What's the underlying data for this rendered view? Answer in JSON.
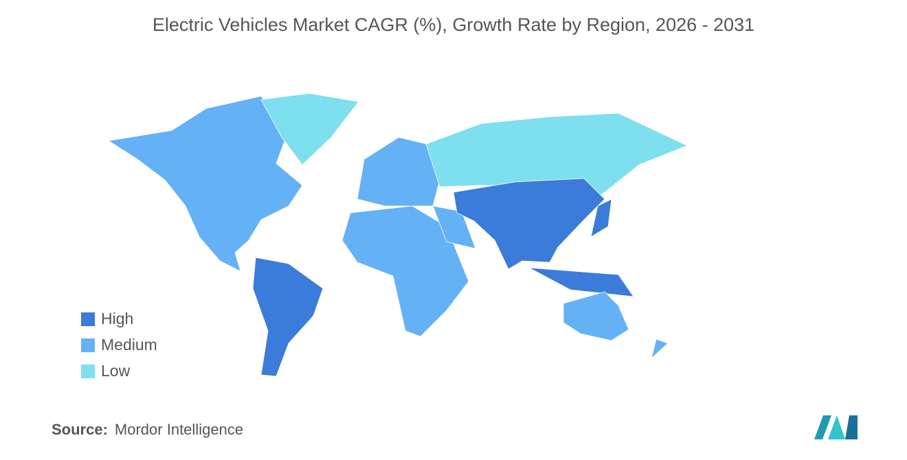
{
  "title": "Electric Vehicles Market CAGR (%), Growth Rate by Region, 2026 - 2031",
  "legend": [
    {
      "label": "High",
      "color": "#3b7bd9"
    },
    {
      "label": "Medium",
      "color": "#64b1f6"
    },
    {
      "label": "Low",
      "color": "#7edfee"
    }
  ],
  "source": {
    "label": "Source:",
    "text": "Mordor Intelligence"
  }
}
